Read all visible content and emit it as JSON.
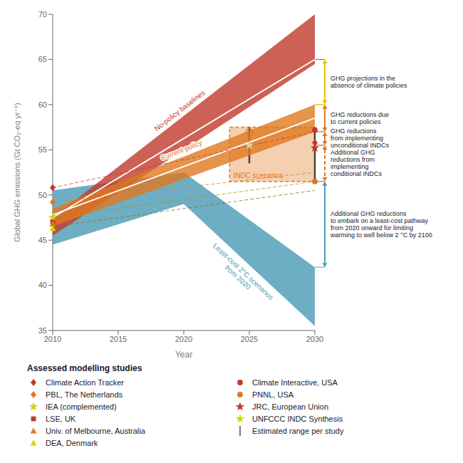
{
  "chart_data": {
    "type": "area",
    "xlabel": "Year",
    "ylabel": "Global GHG emissions (Gt CO₂-eq yr⁻¹)",
    "xlim": [
      2010,
      2030
    ],
    "ylim": [
      35,
      70
    ],
    "xticks": [
      2010,
      2015,
      2020,
      2025,
      2030
    ],
    "yticks": [
      35,
      40,
      45,
      50,
      55,
      60,
      65,
      70
    ],
    "grid": false,
    "bands": [
      {
        "name": "No-policy baselines",
        "color": "#c0392b",
        "x": [
          2010,
          2030
        ],
        "lower": [
          45.5,
          64.5
        ],
        "upper": [
          47.5,
          70.0
        ]
      },
      {
        "name": "Current policy",
        "color": "#e07820",
        "x": [
          2010,
          2030
        ],
        "lower": [
          46.5,
          57.0
        ],
        "upper": [
          48.5,
          60.0
        ]
      },
      {
        "name": "Least-cost 2°C scenarios\nfrom 2020",
        "color": "#4a9ab5",
        "x": [
          2010,
          2020,
          2030
        ],
        "lower": [
          44.5,
          49.0,
          35.5
        ],
        "upper": [
          50.5,
          52.5,
          42.0
        ]
      }
    ],
    "lines": [
      {
        "color": "#ffffff",
        "line_style": "solid",
        "x": [
          2010,
          2030
        ],
        "y": [
          47.5,
          65.0
        ]
      },
      {
        "color": "#ffffff",
        "line_style": "solid",
        "x": [
          2010,
          2030
        ],
        "y": [
          47.8,
          58.5
        ]
      },
      {
        "color": "#c0392b",
        "line_style": "dashed",
        "x": [
          2010,
          2030
        ],
        "y": [
          50.8,
          57.0
        ]
      },
      {
        "color": "#e07820",
        "line_style": "dashed",
        "x": [
          2010,
          2030
        ],
        "y": [
          49.2,
          52.5
        ]
      },
      {
        "color": "#a09000",
        "line_style": "dashed",
        "x": [
          2010,
          2030
        ],
        "y": [
          47.5,
          51.5
        ]
      },
      {
        "color": "#807000",
        "line_style": "dashed",
        "x": [
          2010,
          2030
        ],
        "y": [
          46.5,
          50.5
        ]
      }
    ],
    "box": {
      "name": "INDC scenarios",
      "color": "#e07820",
      "line_style": "dashed",
      "x": [
        2023.5,
        2030.0
      ],
      "y": [
        51.5,
        57.5
      ]
    },
    "points": [
      {
        "x": 2010,
        "y": 50.8,
        "marker": "diamond",
        "color": "#c0392b"
      },
      {
        "x": 2010,
        "y": 49.2,
        "marker": "diamond",
        "color": "#e07820"
      },
      {
        "x": 2010,
        "y": 47.5,
        "marker": "star",
        "color": "#d4d400"
      },
      {
        "x": 2010,
        "y": 47.0,
        "marker": "square",
        "color": "#c0392b"
      },
      {
        "x": 2010,
        "y": 46.8,
        "marker": "triangle",
        "color": "#e07820"
      },
      {
        "x": 2010,
        "y": 46.3,
        "marker": "triangle",
        "color": "#d4d400"
      },
      {
        "x": 2025,
        "y": 55.5,
        "marker": "star",
        "color": "#d4d4a0"
      },
      {
        "x": 2025,
        "y": 57.0,
        "marker": "open_circle",
        "color": "#e07820"
      },
      {
        "x": 2030,
        "y": 57.2,
        "marker": "circle",
        "color": "#c0392b"
      },
      {
        "x": 2030,
        "y": 55.8,
        "marker": "diamond",
        "color": "#c0392b"
      },
      {
        "x": 2030,
        "y": 55.2,
        "marker": "star",
        "color": "#c0392b"
      },
      {
        "x": 2030,
        "y": 51.5,
        "marker": "circle",
        "color": "#e07820"
      }
    ],
    "range_bars": [
      {
        "x": 2025,
        "y": [
          53.5,
          57.5
        ],
        "color": "#444444"
      },
      {
        "x": 2030,
        "y": [
          51.5,
          57.5
        ],
        "color": "#444444"
      }
    ],
    "levels": [
      {
        "y": 65.0,
        "color": "#c0392b"
      },
      {
        "y": 60.0,
        "color": "#f0c000"
      },
      {
        "y": 57.0,
        "color": "#e07820"
      },
      {
        "y": 55.5,
        "color": "#e07820"
      },
      {
        "y": 51.5,
        "color": "#e07820"
      },
      {
        "y": 42.0,
        "color": "#4a9ab5"
      }
    ],
    "arrows": [
      {
        "color": "#f0c000",
        "line_style": "solid",
        "text": "GHG projections in the\nabsence of climate policies"
      },
      {
        "color": "#e07820",
        "line_style": "solid",
        "text": "GHG reductions due\nto current policies"
      },
      {
        "color": "#e07820",
        "line_style": "solid",
        "text": "GHG reductions\nfrom implementing\nunconditional INDCs"
      },
      {
        "color": "#e07820",
        "line_style": "dashed",
        "text": "Additional GHG\nreductions from\nimplementing\nconditional INDCs"
      },
      {
        "color": "#4a9ab5",
        "line_style": "solid",
        "text": "Additional GHG reductions\nto embark on a least-cost pathway\nfrom 2020 onward for limiting\nwarming to well below 2 °C by 2100"
      }
    ],
    "legend_title": "Assessed modelling studies",
    "legend_columns": [
      [
        {
          "marker": "diamond",
          "color": "#c0392b",
          "label": "Climate Action Tracker"
        },
        {
          "marker": "diamond",
          "color": "#e07820",
          "label": "PBL, The Netherlands"
        },
        {
          "marker": "star",
          "color": "#d4d400",
          "label": "IEA (complemented)"
        },
        {
          "marker": "square",
          "color": "#c0392b",
          "label": "LSE, UK"
        },
        {
          "marker": "triangle",
          "color": "#e07820",
          "label": "Univ. of Melbourne, Australia"
        },
        {
          "marker": "triangle",
          "color": "#d4d400",
          "label": "DEA, Denmark"
        }
      ],
      [
        {
          "marker": "circle",
          "color": "#c0392b",
          "label": "Climate Interactive, USA"
        },
        {
          "marker": "circle",
          "color": "#e07820",
          "label": "PNNL, USA"
        },
        {
          "marker": "star",
          "color": "#c0392b",
          "label": "JRC, European Union"
        },
        {
          "marker": "star",
          "color": "#d4d400",
          "label": "UNFCCC INDC Synthesis"
        },
        {
          "marker": "vline",
          "color": "#555555",
          "label": "Estimated range per study"
        }
      ]
    ]
  }
}
